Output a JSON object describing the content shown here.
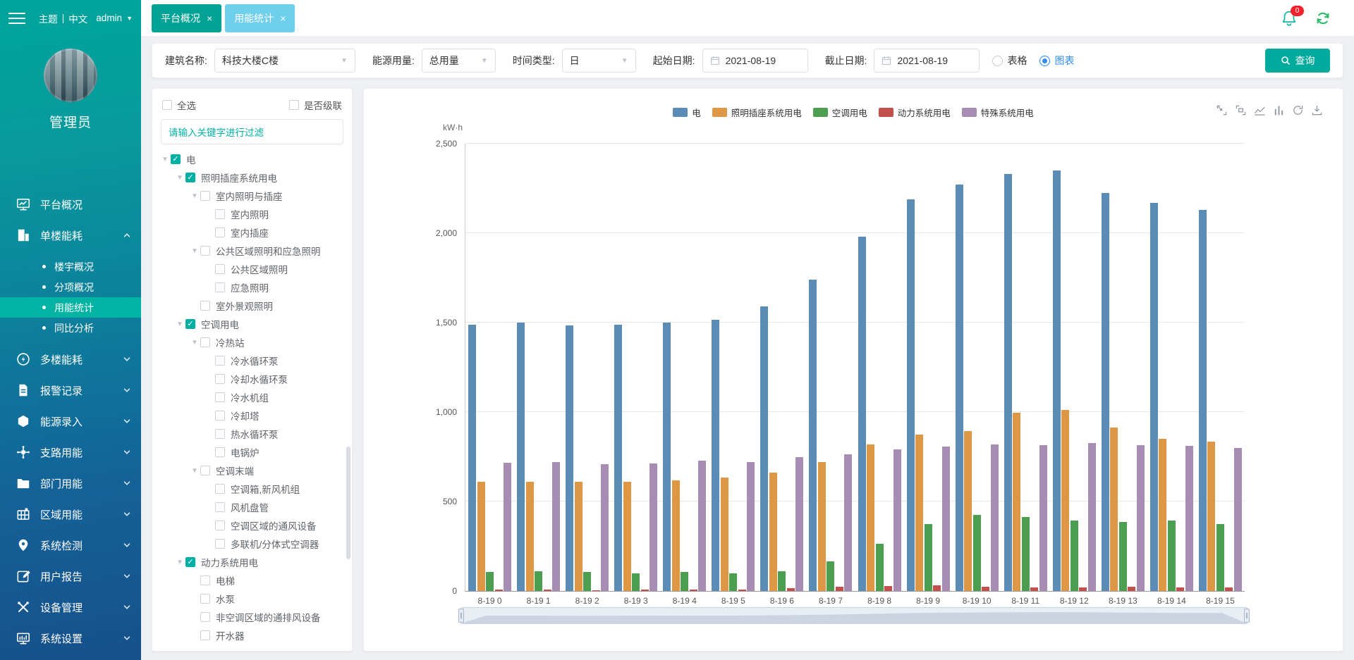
{
  "header": {
    "theme_label": "主题",
    "divider": "|",
    "lang_label": "中文",
    "user": "admin",
    "notification_count": "0",
    "tabs": [
      {
        "label": "平台概况",
        "active": true
      },
      {
        "label": "用能统计",
        "active": false
      }
    ]
  },
  "sidebar": {
    "role_name": "管理员",
    "items": [
      {
        "label": "平台概况",
        "icon": "monitor-chart-icon"
      },
      {
        "label": "单楼能耗",
        "icon": "building-icon",
        "chevron": "up",
        "children": [
          {
            "label": "楼宇概况",
            "active": false
          },
          {
            "label": "分项概况",
            "active": false
          },
          {
            "label": "用能统计",
            "active": true
          },
          {
            "label": "同比分析",
            "active": false
          }
        ]
      },
      {
        "label": "多楼能耗",
        "icon": "energy-circle-icon",
        "chevron": "down"
      },
      {
        "label": "报警记录",
        "icon": "alarm-doc-icon",
        "chevron": "down"
      },
      {
        "label": "能源录入",
        "icon": "hexagon-icon",
        "chevron": "down"
      },
      {
        "label": "支路用能",
        "icon": "branch-icon",
        "chevron": "down"
      },
      {
        "label": "部门用能",
        "icon": "folder-icon",
        "chevron": "down"
      },
      {
        "label": "区域用能",
        "icon": "region-map-icon",
        "chevron": "down"
      },
      {
        "label": "系统检测",
        "icon": "detect-pin-icon",
        "chevron": "down"
      },
      {
        "label": "用户报告",
        "icon": "report-edit-icon",
        "chevron": "down"
      },
      {
        "label": "设备管理",
        "icon": "tools-icon",
        "chevron": "down"
      },
      {
        "label": "系统设置",
        "icon": "settings-monitor-icon",
        "chevron": "down"
      }
    ]
  },
  "filters": {
    "building_label": "建筑名称:",
    "building_value": "科技大楼C楼",
    "energy_label": "能源用量:",
    "energy_value": "总用量",
    "time_type_label": "时间类型:",
    "time_type_value": "日",
    "start_label": "起始日期:",
    "start_value": "2021-08-19",
    "end_label": "截止日期:",
    "end_value": "2021-08-19",
    "view_table": "表格",
    "view_chart": "图表",
    "view_selected": "图表",
    "query_button": "查询"
  },
  "tree_panel": {
    "select_all_label": "全选",
    "cascade_label": "是否级联",
    "filter_placeholder": "请输入关键字进行过滤",
    "nodes": [
      {
        "label": "电",
        "level": 0,
        "checked": true,
        "arrow": true
      },
      {
        "label": "照明插座系统用电",
        "level": 1,
        "checked": true,
        "arrow": true
      },
      {
        "label": "室内照明与插座",
        "level": 2,
        "checked": false,
        "arrow": true
      },
      {
        "label": "室内照明",
        "level": 3,
        "checked": false,
        "arrow": false
      },
      {
        "label": "室内插座",
        "level": 3,
        "checked": false,
        "arrow": false
      },
      {
        "label": "公共区域照明和应急照明",
        "level": 2,
        "checked": false,
        "arrow": true
      },
      {
        "label": "公共区域照明",
        "level": 3,
        "checked": false,
        "arrow": false
      },
      {
        "label": "应急照明",
        "level": 3,
        "checked": false,
        "arrow": false
      },
      {
        "label": "室外景观照明",
        "level": 2,
        "checked": false,
        "arrow": false
      },
      {
        "label": "空调用电",
        "level": 1,
        "checked": true,
        "arrow": true
      },
      {
        "label": "冷热站",
        "level": 2,
        "checked": false,
        "arrow": true
      },
      {
        "label": "冷水循环泵",
        "level": 3,
        "checked": false,
        "arrow": false
      },
      {
        "label": "冷却水循环泵",
        "level": 3,
        "checked": false,
        "arrow": false
      },
      {
        "label": "冷水机组",
        "level": 3,
        "checked": false,
        "arrow": false
      },
      {
        "label": "冷却塔",
        "level": 3,
        "checked": false,
        "arrow": false
      },
      {
        "label": "热水循环泵",
        "level": 3,
        "checked": false,
        "arrow": false
      },
      {
        "label": "电锅炉",
        "level": 3,
        "checked": false,
        "arrow": false
      },
      {
        "label": "空调末端",
        "level": 2,
        "checked": false,
        "arrow": true
      },
      {
        "label": "空调箱,新风机组",
        "level": 3,
        "checked": false,
        "arrow": false
      },
      {
        "label": "风机盘管",
        "level": 3,
        "checked": false,
        "arrow": false
      },
      {
        "label": "空调区域的通风设备",
        "level": 3,
        "checked": false,
        "arrow": false
      },
      {
        "label": "多联机/分体式空调器",
        "level": 3,
        "checked": false,
        "arrow": false
      },
      {
        "label": "动力系统用电",
        "level": 1,
        "checked": true,
        "arrow": true
      },
      {
        "label": "电梯",
        "level": 2,
        "checked": false,
        "arrow": false
      },
      {
        "label": "水泵",
        "level": 2,
        "checked": false,
        "arrow": false
      },
      {
        "label": "非空调区域的通排风设备",
        "level": 2,
        "checked": false,
        "arrow": false
      },
      {
        "label": "开水器",
        "level": 2,
        "checked": false,
        "arrow": false
      }
    ]
  },
  "toolbox_icons": [
    "area-zoom-icon",
    "zoom-reset-icon",
    "line-chart-icon",
    "bar-chart-icon",
    "restore-icon",
    "download-icon"
  ],
  "chart_data": {
    "type": "bar",
    "title": "",
    "unit": "kW·h",
    "categories": [
      "8-19 0",
      "8-19 1",
      "8-19 2",
      "8-19 3",
      "8-19 4",
      "8-19 5",
      "8-19 6",
      "8-19 7",
      "8-19 8",
      "8-19 9",
      "8-19 10",
      "8-19 11",
      "8-19 12",
      "8-19 13",
      "8-19 14",
      "8-19 15"
    ],
    "series": [
      {
        "name": "电",
        "color": "#5a8cb5",
        "values": [
          1490,
          1500,
          1485,
          1490,
          1500,
          1515,
          1590,
          1740,
          1980,
          2190,
          2270,
          2330,
          2350,
          2225,
          2170,
          2130
        ]
      },
      {
        "name": "照明插座系统用电",
        "color": "#dd9745",
        "values": [
          612,
          612,
          610,
          612,
          618,
          635,
          660,
          720,
          820,
          875,
          895,
          995,
          1010,
          915,
          850,
          835
        ]
      },
      {
        "name": "空调用电",
        "color": "#4c9e50",
        "values": [
          105,
          110,
          108,
          98,
          105,
          98,
          112,
          165,
          265,
          375,
          425,
          415,
          395,
          385,
          395,
          375
        ]
      },
      {
        "name": "动力系统用电",
        "color": "#c4504e",
        "values": [
          6,
          9,
          4,
          7,
          6,
          9,
          16,
          22,
          26,
          30,
          25,
          20,
          20,
          25,
          20,
          20
        ]
      },
      {
        "name": "特殊系统用电",
        "color": "#a78db3",
        "values": [
          715,
          720,
          707,
          712,
          728,
          720,
          748,
          765,
          790,
          808,
          820,
          815,
          825,
          815,
          810,
          800
        ]
      }
    ],
    "ylim": [
      0,
      2500
    ],
    "yticks": [
      "0",
      "500",
      "1,000",
      "1,500",
      "2,000",
      "2,500"
    ],
    "grid": true,
    "legend_position": "top"
  }
}
